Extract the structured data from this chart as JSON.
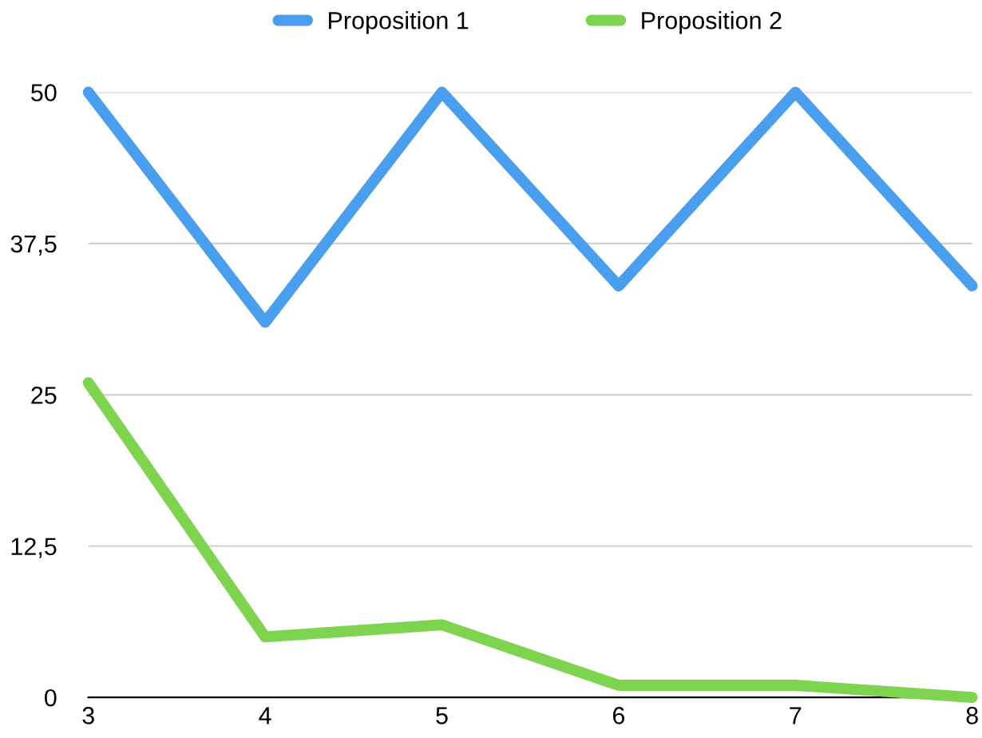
{
  "chart_data": {
    "type": "line",
    "x": [
      3,
      4,
      5,
      6,
      7,
      8
    ],
    "series": [
      {
        "name": "Proposition 1",
        "color": "#4a9eee",
        "values": [
          50,
          31,
          50,
          34,
          50,
          34
        ]
      },
      {
        "name": "Proposition 2",
        "color": "#7ed34f",
        "values": [
          26,
          5,
          6,
          1,
          1,
          0
        ]
      }
    ],
    "xlim": [
      3,
      8
    ],
    "xticks": [
      3,
      4,
      5,
      6,
      7,
      8
    ],
    "ylim": [
      0,
      50
    ],
    "yticks": [
      0,
      {
        "value": 12.5,
        "label": "12,5"
      },
      25,
      {
        "value": 37.5,
        "label": "37,5"
      },
      50
    ],
    "grid": "y",
    "legend": "top",
    "marker": "none",
    "line_style": "solid"
  }
}
